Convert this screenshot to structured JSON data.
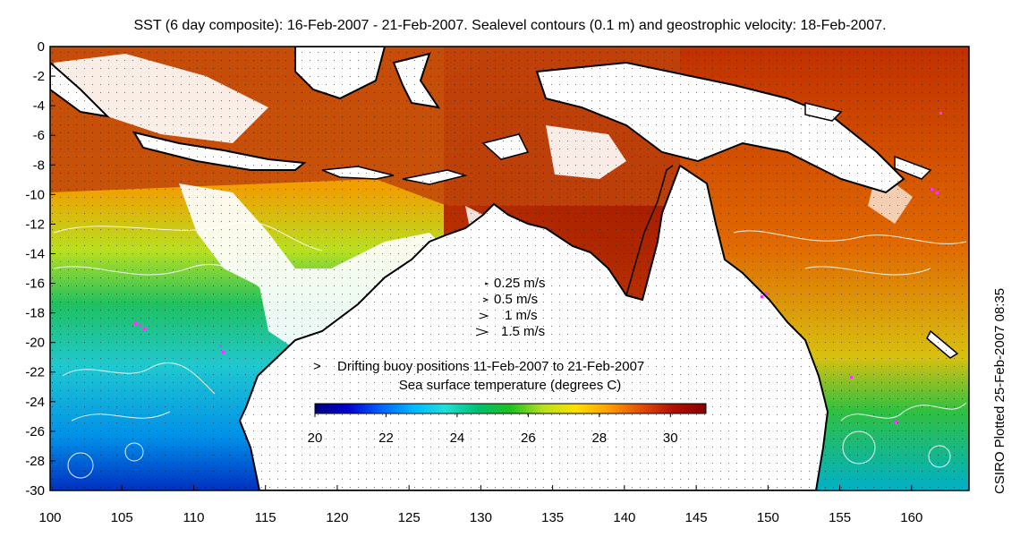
{
  "title": "SST (6 day composite): 16-Feb-2007 - 21-Feb-2007. Sealevel contours (0.1 m) and geostrophic velocity: 18-Feb-2007.",
  "credit": "CSIRO Plotted 25-Feb-2007 08:35",
  "axes": {
    "x_ticks": [
      "100",
      "105",
      "110",
      "115",
      "120",
      "125",
      "130",
      "135",
      "140",
      "145",
      "150",
      "155",
      "160"
    ],
    "y_ticks": [
      "0",
      "-2",
      "-4",
      "-6",
      "-8",
      "-10",
      "-12",
      "-14",
      "-16",
      "-18",
      "-20",
      "-22",
      "-24",
      "-26",
      "-28",
      "-30"
    ],
    "xlim": [
      100,
      164
    ],
    "ylim": [
      -30,
      0
    ]
  },
  "velocity_legend": {
    "items": [
      {
        "label": "0.25 m/s"
      },
      {
        "label": "0.5 m/s"
      },
      {
        "label": "1 m/s"
      },
      {
        "label": "1.5 m/s"
      }
    ]
  },
  "buoy_legend": {
    "marker": ">",
    "label": "Drifting buoy positions 11-Feb-2007 to 21-Feb-2007",
    "color": "#ff33ff"
  },
  "colorbar": {
    "label": "Sea surface temperature (degrees C)",
    "range": [
      20,
      31
    ],
    "ticks": [
      "20",
      "22",
      "24",
      "26",
      "28",
      "30"
    ],
    "colors": [
      "#00007f",
      "#0000d0",
      "#0060ff",
      "#00b8ff",
      "#20e0d8",
      "#00c070",
      "#20c020",
      "#b8e020",
      "#ffe000",
      "#ffa000",
      "#e05000",
      "#b01000",
      "#8a0000"
    ]
  }
}
